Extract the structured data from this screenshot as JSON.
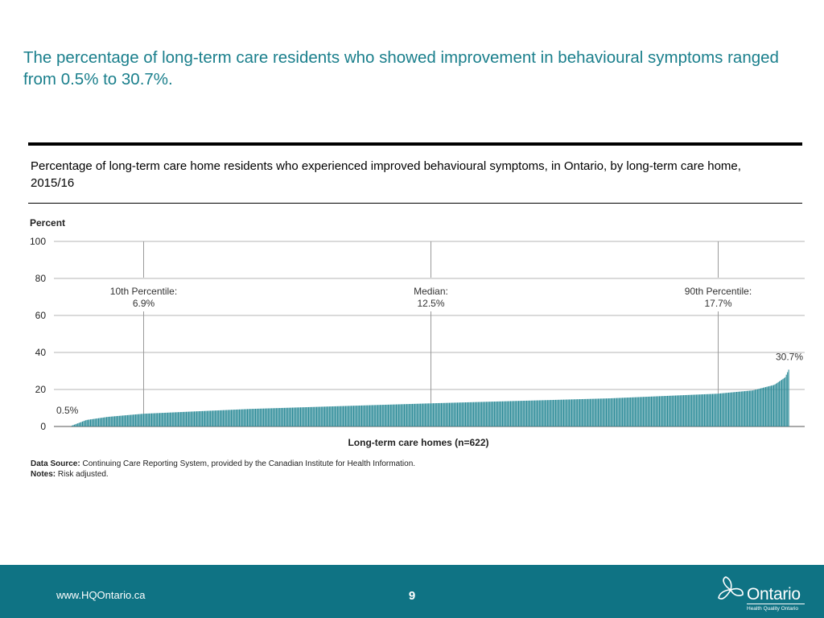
{
  "slide": {
    "headline": "The percentage of long-term care residents who showed improvement in behavioural symptoms ranged from 0.5% to 30.7%.",
    "page_number": "9",
    "url": "www.HQOntario.ca"
  },
  "logo": {
    "wordmark": "Ontario",
    "subtitle": "Health Quality Ontario"
  },
  "notes": {
    "data_source_label": "Data Source:",
    "data_source_text": "Continuing Care Reporting System, provided by the Canadian Institute for Health Information.",
    "notes_label": "Notes:",
    "notes_text": "Risk adjusted."
  },
  "colors": {
    "headline": "#1a7f8c",
    "bar": "#2a8a97",
    "footer": "#0f7384"
  },
  "chart_data": {
    "type": "bar",
    "title": "Percentage of long-term care home residents who experienced improved behavioural symptoms, in Ontario, by long-term care home, 2015/16",
    "ylabel": "Percent",
    "xlabel": "Long-term care homes (n=622)",
    "n": 622,
    "ylim": [
      0,
      100
    ],
    "yticks": [
      0,
      20,
      40,
      60,
      80,
      100
    ],
    "grid": true,
    "min_value": 0.5,
    "max_value": 30.7,
    "min_label": "0.5%",
    "max_label": "30.7%",
    "value_percentiles": [
      {
        "p": 0,
        "v": 0.5
      },
      {
        "p": 0.02,
        "v": 3.5
      },
      {
        "p": 0.05,
        "v": 5.2
      },
      {
        "p": 0.1,
        "v": 6.9
      },
      {
        "p": 0.25,
        "v": 9.5
      },
      {
        "p": 0.5,
        "v": 12.5
      },
      {
        "p": 0.75,
        "v": 15.2
      },
      {
        "p": 0.9,
        "v": 17.7
      },
      {
        "p": 0.95,
        "v": 19.5
      },
      {
        "p": 0.98,
        "v": 22.5
      },
      {
        "p": 0.995,
        "v": 26.5
      },
      {
        "p": 1,
        "v": 30.7
      }
    ],
    "reference_lines": [
      {
        "name": "10th Percentile:",
        "value_label": "6.9%",
        "percentile": 0.1,
        "value": 6.9
      },
      {
        "name": "Median:",
        "value_label": "12.5%",
        "percentile": 0.5,
        "value": 12.5
      },
      {
        "name": "90th Percentile:",
        "value_label": "17.7%",
        "percentile": 0.9,
        "value": 17.7
      }
    ]
  }
}
